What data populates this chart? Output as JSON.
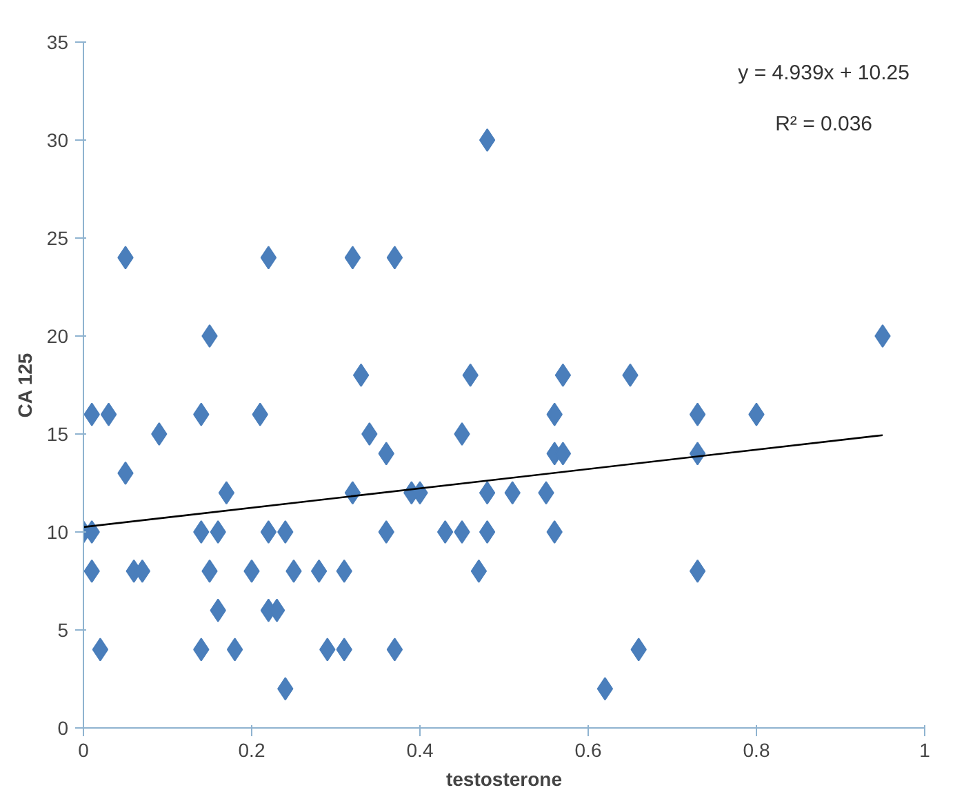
{
  "chart_data": {
    "type": "scatter",
    "xlabel": "testosterone",
    "ylabel": "CA 125",
    "xlim": [
      0,
      1
    ],
    "ylim": [
      0,
      35
    ],
    "xticks": [
      0,
      0.2,
      0.4,
      0.6,
      0.8,
      1
    ],
    "yticks": [
      0,
      5,
      10,
      15,
      20,
      25,
      30,
      35
    ],
    "grid": false,
    "annotations": [
      "y = 4.939x + 10.25",
      "R² = 0.036"
    ],
    "series": [
      {
        "color": "#4a7ebb",
        "marker": "diamond",
        "x": [
          0.0,
          0.01,
          0.01,
          0.01,
          0.02,
          0.03,
          0.05,
          0.05,
          0.06,
          0.07,
          0.09,
          0.14,
          0.14,
          0.14,
          0.15,
          0.15,
          0.16,
          0.16,
          0.17,
          0.18,
          0.2,
          0.21,
          0.22,
          0.22,
          0.22,
          0.23,
          0.24,
          0.24,
          0.25,
          0.28,
          0.29,
          0.31,
          0.31,
          0.32,
          0.32,
          0.33,
          0.34,
          0.36,
          0.36,
          0.37,
          0.37,
          0.39,
          0.4,
          0.43,
          0.45,
          0.45,
          0.46,
          0.47,
          0.48,
          0.48,
          0.48,
          0.51,
          0.55,
          0.56,
          0.56,
          0.56,
          0.57,
          0.57,
          0.62,
          0.65,
          0.66,
          0.73,
          0.73,
          0.73,
          0.8,
          0.95
        ],
        "values": [
          10,
          10,
          8,
          16,
          4,
          16,
          24,
          13,
          8,
          8,
          15,
          16,
          10,
          4,
          20,
          8,
          10,
          6,
          12,
          4,
          8,
          16,
          24,
          10,
          6,
          6,
          10,
          2,
          8,
          8,
          4,
          8,
          4,
          24,
          12,
          18,
          15,
          14,
          10,
          24,
          4,
          12,
          12,
          10,
          10,
          15,
          18,
          8,
          30,
          12,
          10,
          12,
          12,
          16,
          14,
          10,
          14,
          18,
          2,
          18,
          4,
          16,
          14,
          8,
          16,
          20
        ]
      },
      {
        "type": "line",
        "color": "#000000",
        "marker": "none",
        "x": [
          0,
          0.95
        ],
        "values": [
          10.25,
          14.94
        ]
      }
    ]
  }
}
